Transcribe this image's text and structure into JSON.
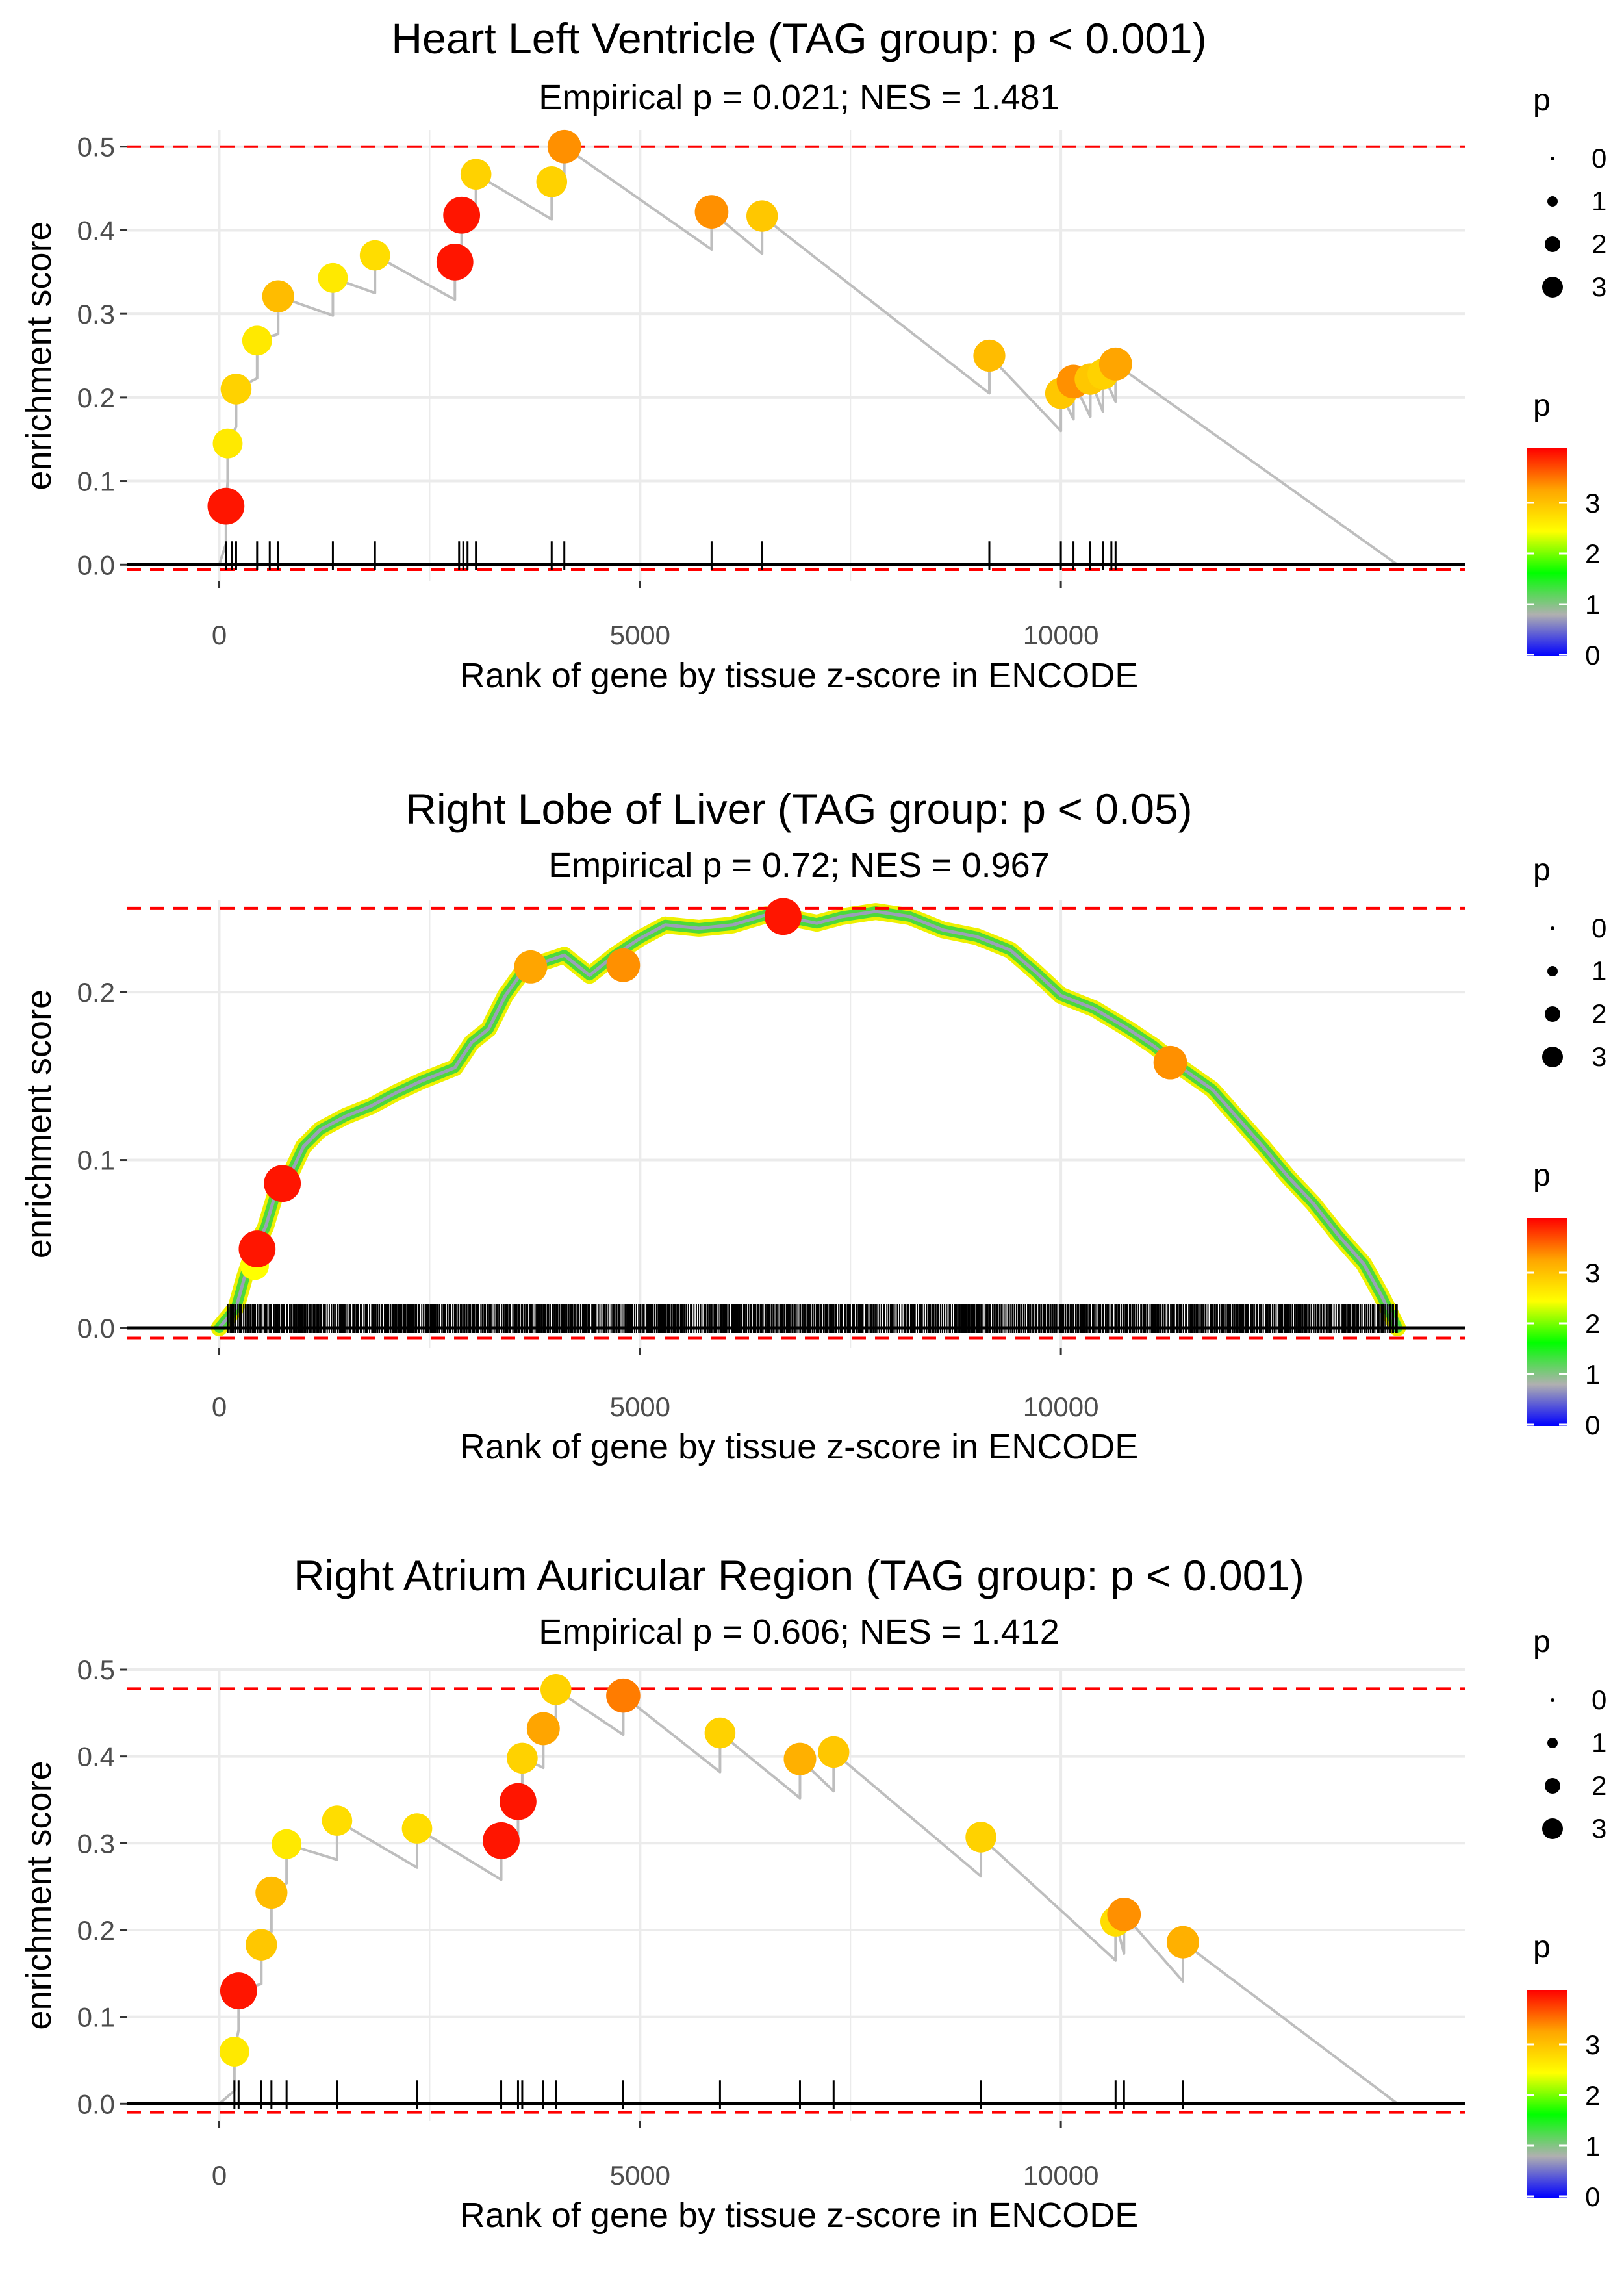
{
  "colors": {
    "ref_line": "#ff0000",
    "baseline": "#000000",
    "curve": "#bebebe",
    "grid": "#ebebeb",
    "tick_text": "#4d4d4d",
    "colorbar": [
      "#0000ff",
      "#b0b0b0",
      "#00ff00",
      "#ffff00",
      "#ffa500",
      "#ff0000"
    ]
  },
  "chart_data": [
    {
      "type": "scatter",
      "title": "Heart Left Ventricle (TAG group: p < 0.001)",
      "subtitle": "Empirical p = 0.021; NES = 1.481",
      "xlabel": "Rank of gene by tissue z-score in ENCODE",
      "ylabel": "enrichment score",
      "xlim": [
        -1100,
        14800
      ],
      "ylim": [
        -0.02,
        0.52
      ],
      "xticks": [
        0,
        5000,
        10000
      ],
      "xtick_labels": [
        "0",
        "5000",
        "10000"
      ],
      "yticks": [
        0,
        0.1,
        0.2,
        0.3,
        0.4,
        0.5
      ],
      "ytick_labels": [
        "0.0",
        "0.1",
        "0.2",
        "0.3",
        "0.4",
        "0.5"
      ],
      "hlines": [
        0.5,
        -0.006
      ],
      "curve_end": 14000,
      "rug": [
        80,
        150,
        200,
        450,
        600,
        700,
        1350,
        1850,
        2850,
        2900,
        2950,
        3050,
        3950,
        4100,
        5850,
        6450,
        9150,
        10000,
        10150,
        10350,
        10500,
        10600,
        10650
      ],
      "points": [
        {
          "x": 80,
          "y": 0.07,
          "p": 3.9
        },
        {
          "x": 100,
          "y": 0.145,
          "p": 2.6
        },
        {
          "x": 200,
          "y": 0.21,
          "p": 2.8
        },
        {
          "x": 450,
          "y": 0.268,
          "p": 2.6
        },
        {
          "x": 700,
          "y": 0.321,
          "p": 3.0
        },
        {
          "x": 1350,
          "y": 0.343,
          "p": 2.6
        },
        {
          "x": 1850,
          "y": 0.37,
          "p": 2.7
        },
        {
          "x": 2800,
          "y": 0.362,
          "p": 3.9
        },
        {
          "x": 2880,
          "y": 0.418,
          "p": 3.9
        },
        {
          "x": 3050,
          "y": 0.467,
          "p": 2.8
        },
        {
          "x": 3950,
          "y": 0.458,
          "p": 2.8
        },
        {
          "x": 4100,
          "y": 0.5,
          "p": 3.3
        },
        {
          "x": 5850,
          "y": 0.422,
          "p": 3.3
        },
        {
          "x": 6450,
          "y": 0.417,
          "p": 2.9
        },
        {
          "x": 9150,
          "y": 0.25,
          "p": 3.0
        },
        {
          "x": 10000,
          "y": 0.205,
          "p": 2.9
        },
        {
          "x": 10150,
          "y": 0.219,
          "p": 3.3
        },
        {
          "x": 10350,
          "y": 0.222,
          "p": 2.9
        },
        {
          "x": 10500,
          "y": 0.228,
          "p": 2.8
        },
        {
          "x": 10650,
          "y": 0.24,
          "p": 3.2
        }
      ],
      "legend_size": {
        "title": "p",
        "labels": [
          "0",
          "1",
          "2",
          "3"
        ]
      },
      "legend_color": {
        "title": "p",
        "labels": [
          "3",
          "2",
          "1",
          "0"
        ]
      }
    },
    {
      "type": "scatter",
      "title": "Right Lobe of Liver (TAG group: p < 0.05)",
      "subtitle": "Empirical p = 0.72; NES = 0.967",
      "xlabel": "Rank of gene by tissue z-score in ENCODE",
      "ylabel": "enrichment score",
      "xlim": [
        -1100,
        14800
      ],
      "ylim": [
        -0.012,
        0.255
      ],
      "xticks": [
        0,
        5000,
        10000
      ],
      "xtick_labels": [
        "0",
        "5000",
        "10000"
      ],
      "yticks": [
        0,
        0.1,
        0.2
      ],
      "ytick_labels": [
        "0.0",
        "0.1",
        "0.2"
      ],
      "hlines": [
        0.25,
        -0.006
      ],
      "dense_rug_range": [
        100,
        14000
      ],
      "curve": [
        {
          "x": 0,
          "y": 0.0
        },
        {
          "x": 200,
          "y": 0.012
        },
        {
          "x": 300,
          "y": 0.03
        },
        {
          "x": 400,
          "y": 0.045
        },
        {
          "x": 550,
          "y": 0.06
        },
        {
          "x": 700,
          "y": 0.085
        },
        {
          "x": 850,
          "y": 0.092
        },
        {
          "x": 1000,
          "y": 0.108
        },
        {
          "x": 1200,
          "y": 0.118
        },
        {
          "x": 1500,
          "y": 0.126
        },
        {
          "x": 1800,
          "y": 0.132
        },
        {
          "x": 2100,
          "y": 0.14
        },
        {
          "x": 2400,
          "y": 0.147
        },
        {
          "x": 2800,
          "y": 0.155
        },
        {
          "x": 3000,
          "y": 0.17
        },
        {
          "x": 3200,
          "y": 0.178
        },
        {
          "x": 3400,
          "y": 0.198
        },
        {
          "x": 3600,
          "y": 0.212
        },
        {
          "x": 3800,
          "y": 0.217
        },
        {
          "x": 4100,
          "y": 0.222
        },
        {
          "x": 4400,
          "y": 0.21
        },
        {
          "x": 4700,
          "y": 0.222
        },
        {
          "x": 5000,
          "y": 0.232
        },
        {
          "x": 5300,
          "y": 0.24
        },
        {
          "x": 5700,
          "y": 0.238
        },
        {
          "x": 6100,
          "y": 0.24
        },
        {
          "x": 6500,
          "y": 0.246
        },
        {
          "x": 6800,
          "y": 0.244
        },
        {
          "x": 7100,
          "y": 0.241
        },
        {
          "x": 7400,
          "y": 0.245
        },
        {
          "x": 7800,
          "y": 0.248
        },
        {
          "x": 8200,
          "y": 0.245
        },
        {
          "x": 8600,
          "y": 0.237
        },
        {
          "x": 9000,
          "y": 0.233
        },
        {
          "x": 9400,
          "y": 0.225
        },
        {
          "x": 9700,
          "y": 0.212
        },
        {
          "x": 10000,
          "y": 0.198
        },
        {
          "x": 10400,
          "y": 0.19
        },
        {
          "x": 10800,
          "y": 0.178
        },
        {
          "x": 11100,
          "y": 0.168
        },
        {
          "x": 11400,
          "y": 0.156
        },
        {
          "x": 11800,
          "y": 0.142
        },
        {
          "x": 12100,
          "y": 0.125
        },
        {
          "x": 12400,
          "y": 0.108
        },
        {
          "x": 12700,
          "y": 0.09
        },
        {
          "x": 13000,
          "y": 0.074
        },
        {
          "x": 13300,
          "y": 0.055
        },
        {
          "x": 13600,
          "y": 0.038
        },
        {
          "x": 13800,
          "y": 0.02
        },
        {
          "x": 14000,
          "y": 0.0
        }
      ],
      "points": [
        {
          "x": 420,
          "y": 0.037,
          "p": 2.4
        },
        {
          "x": 450,
          "y": 0.047,
          "p": 3.9
        },
        {
          "x": 750,
          "y": 0.086,
          "p": 3.9
        },
        {
          "x": 3700,
          "y": 0.215,
          "p": 3.2
        },
        {
          "x": 4800,
          "y": 0.216,
          "p": 3.3
        },
        {
          "x": 6700,
          "y": 0.245,
          "p": 3.9
        },
        {
          "x": 11300,
          "y": 0.158,
          "p": 3.3
        }
      ],
      "legend_size": {
        "title": "p",
        "labels": [
          "0",
          "1",
          "2",
          "3"
        ]
      },
      "legend_color": {
        "title": "p",
        "labels": [
          "3",
          "2",
          "1",
          "0"
        ]
      }
    },
    {
      "type": "scatter",
      "title": "Right Atrium Auricular Region (TAG group: p < 0.001)",
      "subtitle": "Empirical p = 0.606; NES = 1.412",
      "xlabel": "Rank of gene by tissue z-score in ENCODE",
      "ylabel": "enrichment score",
      "xlim": [
        -1100,
        14800
      ],
      "ylim": [
        -0.02,
        0.5
      ],
      "xticks": [
        0,
        5000,
        10000
      ],
      "xtick_labels": [
        "0",
        "5000",
        "10000"
      ],
      "yticks": [
        0,
        0.1,
        0.2,
        0.3,
        0.4,
        0.5
      ],
      "ytick_labels": [
        "0.0",
        "0.1",
        "0.2",
        "0.3",
        "0.4",
        "0.5"
      ],
      "hlines": [
        0.478,
        -0.01
      ],
      "curve_end": 14000,
      "rug": [
        180,
        230,
        500,
        620,
        800,
        1400,
        2350,
        3350,
        3550,
        3600,
        3850,
        4000,
        4800,
        5950,
        6900,
        7300,
        9050,
        10650,
        10750,
        11450
      ],
      "points": [
        {
          "x": 180,
          "y": 0.06,
          "p": 2.6
        },
        {
          "x": 230,
          "y": 0.13,
          "p": 3.9
        },
        {
          "x": 500,
          "y": 0.183,
          "p": 2.9
        },
        {
          "x": 620,
          "y": 0.243,
          "p": 3.0
        },
        {
          "x": 800,
          "y": 0.299,
          "p": 2.6
        },
        {
          "x": 1400,
          "y": 0.326,
          "p": 2.7
        },
        {
          "x": 2350,
          "y": 0.317,
          "p": 2.7
        },
        {
          "x": 3350,
          "y": 0.303,
          "p": 3.9
        },
        {
          "x": 3550,
          "y": 0.348,
          "p": 3.9
        },
        {
          "x": 3600,
          "y": 0.398,
          "p": 2.8
        },
        {
          "x": 3850,
          "y": 0.432,
          "p": 3.2
        },
        {
          "x": 4000,
          "y": 0.477,
          "p": 2.8
        },
        {
          "x": 4800,
          "y": 0.47,
          "p": 3.4
        },
        {
          "x": 5950,
          "y": 0.427,
          "p": 2.8
        },
        {
          "x": 6900,
          "y": 0.397,
          "p": 3.1
        },
        {
          "x": 7300,
          "y": 0.405,
          "p": 2.9
        },
        {
          "x": 9050,
          "y": 0.307,
          "p": 2.8
        },
        {
          "x": 10650,
          "y": 0.21,
          "p": 2.7
        },
        {
          "x": 10750,
          "y": 0.218,
          "p": 3.3
        },
        {
          "x": 11450,
          "y": 0.186,
          "p": 3.1
        }
      ],
      "legend_size": {
        "title": "p",
        "labels": [
          "0",
          "1",
          "2",
          "3"
        ]
      },
      "legend_color": {
        "title": "p",
        "labels": [
          "3",
          "2",
          "1",
          "0"
        ]
      }
    }
  ]
}
